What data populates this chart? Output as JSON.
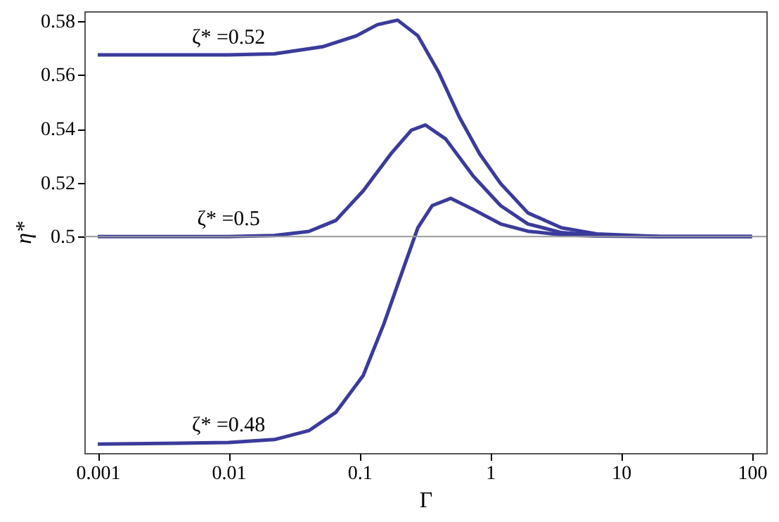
{
  "chart_data": {
    "type": "line",
    "xlabel": "Γ",
    "ylabel": "η*",
    "log": "x",
    "grid": false,
    "marker": "none",
    "line_style": "solid",
    "xlim": [
      0.00079,
      129
    ],
    "xticks": [
      0.001,
      0.01,
      0.1,
      1,
      10,
      100
    ],
    "ylim": [
      0.4197,
      0.5836
    ],
    "yticks": [
      0.5,
      0.52,
      0.54,
      0.56,
      0.58
    ],
    "ref_lines": [
      {
        "axis": "y",
        "value": 0.5,
        "color": "#999999"
      }
    ],
    "series": [
      {
        "name": "ζ* =0.52",
        "color": "#3b3b9b",
        "x": [
          0.001,
          0.01,
          0.0224,
          0.052,
          0.095,
          0.137,
          0.196,
          0.28,
          0.405,
          0.58,
          0.83,
          1.2,
          1.94,
          3.5,
          6.5,
          20,
          100
        ],
        "values": [
          0.5674,
          0.5674,
          0.5678,
          0.5704,
          0.5745,
          0.5786,
          0.5803,
          0.5745,
          0.5608,
          0.5444,
          0.5307,
          0.5197,
          0.5088,
          0.5033,
          0.501,
          0.5,
          0.5
        ]
      },
      {
        "name": "ζ* =0.5",
        "color": "#3b3b9b",
        "x": [
          0.001,
          0.01,
          0.0224,
          0.041,
          0.066,
          0.107,
          0.174,
          0.25,
          0.32,
          0.457,
          0.74,
          1.2,
          1.94,
          3.5,
          6.5,
          20,
          100
        ],
        "values": [
          0.5,
          0.5,
          0.5004,
          0.5019,
          0.506,
          0.517,
          0.5307,
          0.5395,
          0.5414,
          0.5362,
          0.5225,
          0.5115,
          0.5047,
          0.5015,
          0.5005,
          0.5,
          0.5
        ]
      },
      {
        "name": "ζ* =0.48",
        "color": "#3b3b9b",
        "x": [
          0.001,
          0.01,
          0.0224,
          0.041,
          0.066,
          0.107,
          0.154,
          0.222,
          0.28,
          0.36,
          0.5,
          0.74,
          1.2,
          1.94,
          3.5,
          6.5,
          20,
          100
        ],
        "values": [
          0.423,
          0.4236,
          0.4247,
          0.428,
          0.4348,
          0.4485,
          0.4677,
          0.4896,
          0.5033,
          0.5115,
          0.5142,
          0.5101,
          0.5047,
          0.502,
          0.5007,
          0.5002,
          0.5,
          0.5
        ]
      }
    ]
  }
}
